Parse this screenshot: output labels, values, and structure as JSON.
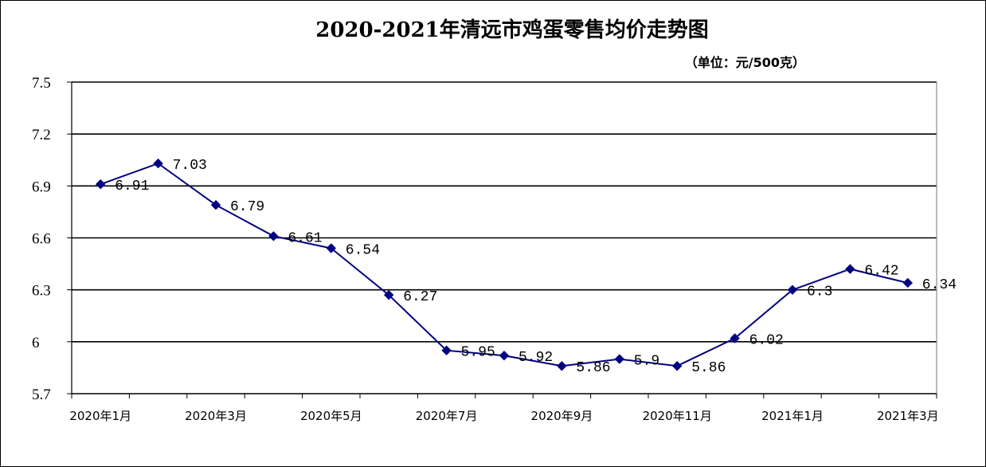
{
  "chart_data": {
    "type": "line",
    "title": "2020-2021年清远市鸡蛋零售均价走势图",
    "unit_label": "（单位：元/500克）",
    "xlabel": "",
    "ylabel": "",
    "ylim": [
      5.7,
      7.5
    ],
    "y_ticks": [
      "7.5",
      "7.2",
      "6.9",
      "6.6",
      "6.3",
      "6",
      "5.7"
    ],
    "x_tick_labels": [
      "2020年1月",
      "2020年3月",
      "2020年5月",
      "2020年7月",
      "2020年9月",
      "2020年11月",
      "2021年1月",
      "2021年3月"
    ],
    "grid": true,
    "legend": "none",
    "line_color": "#000080",
    "series": [
      {
        "values": [
          6.91,
          7.03,
          6.79,
          6.61,
          6.54,
          6.27,
          5.95,
          5.92,
          5.86,
          5.9,
          5.86,
          6.02,
          6.3,
          6.42,
          6.34
        ],
        "labels": [
          "6.91",
          "7.03",
          "6.79",
          "6.61",
          "6.54",
          "6.27",
          "5.95",
          "5.92",
          "5.86",
          "5.9",
          "5.86",
          "6.02",
          "6.3",
          "6.42",
          "6.34"
        ]
      }
    ]
  }
}
